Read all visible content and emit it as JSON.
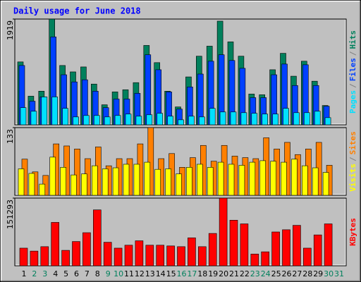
{
  "chart_data": [
    {
      "type": "bar",
      "title": "Daily usage for June 2018",
      "ylim": [
        0,
        1919
      ],
      "yticks": [
        1919
      ],
      "legend_separator": "/",
      "series": [
        {
          "name": "Hits",
          "color": "#00805c",
          "values": [
            1141,
            519,
            610,
            1919,
            1076,
            960,
            1050,
            739,
            363,
            597,
            636,
            765,
            1440,
            1128,
            610,
            324,
            869,
            1245,
            1427,
            1881,
            1505,
            1245,
            558,
            545,
            999,
            1297,
            882,
            1154,
            791,
            350,
            0
          ]
        },
        {
          "name": "Files",
          "color": "#0040ff",
          "values": [
            1076,
            428,
            506,
            1595,
            908,
            778,
            817,
            610,
            311,
            467,
            467,
            571,
            1271,
            999,
            597,
            285,
            687,
            921,
            1154,
            1271,
            1167,
            1025,
            493,
            493,
            908,
            1102,
            713,
            1089,
            713,
            337,
            0
          ]
        },
        {
          "name": "Pages",
          "color": "#00e0ff",
          "values": [
            311,
            246,
            506,
            506,
            298,
            143,
            169,
            169,
            143,
            169,
            195,
            156,
            182,
            208,
            156,
            91,
            156,
            143,
            298,
            233,
            233,
            220,
            208,
            195,
            195,
            298,
            220,
            220,
            246,
            130,
            0
          ]
        }
      ]
    },
    {
      "type": "bar",
      "ylim": [
        0,
        133
      ],
      "yticks": [
        133
      ],
      "legend_separator": "/",
      "series": [
        {
          "name": "Sites",
          "color": "#ff8000",
          "values": [
            71,
            46,
            39,
            101,
            97,
            91,
            72,
            95,
            58,
            72,
            72,
            101,
            133,
            72,
            82,
            55,
            74,
            98,
            67,
            98,
            77,
            74,
            72,
            113,
            91,
            104,
            80,
            91,
            104,
            59,
            0
          ]
        },
        {
          "name": "Visits",
          "color": "#ffff00",
          "values": [
            52,
            43,
            22,
            75,
            55,
            40,
            42,
            58,
            52,
            54,
            61,
            61,
            65,
            51,
            52,
            42,
            55,
            61,
            55,
            65,
            61,
            59,
            65,
            68,
            67,
            65,
            71,
            58,
            54,
            45,
            0
          ]
        }
      ]
    },
    {
      "type": "bar",
      "ylim": [
        0,
        151293
      ],
      "yticks": [
        151293
      ],
      "categories": [
        "1",
        "2",
        "3",
        "4",
        "5",
        "6",
        "7",
        "8",
        "9",
        "10",
        "11",
        "12",
        "13",
        "14",
        "15",
        "16",
        "17",
        "18",
        "19",
        "20",
        "21",
        "22",
        "23",
        "24",
        "25",
        "26",
        "27",
        "28",
        "29",
        "30",
        "31"
      ],
      "category_colors": [
        "#000000",
        "#00805c",
        "#00805c",
        "#000000",
        "#000000",
        "#000000",
        "#000000",
        "#000000",
        "#00805c",
        "#00805c",
        "#000000",
        "#000000",
        "#000000",
        "#000000",
        "#000000",
        "#00805c",
        "#00805c",
        "#000000",
        "#000000",
        "#000000",
        "#000000",
        "#000000",
        "#00805c",
        "#00805c",
        "#000000",
        "#000000",
        "#000000",
        "#000000",
        "#000000",
        "#00805c",
        "#00805c"
      ],
      "series": [
        {
          "name": "KBytes",
          "color": "#ff0000",
          "values": [
            39468,
            32890,
            42757,
            97026,
            34535,
            54269,
            74003,
            124982,
            52624,
            39468,
            46046,
            55913,
            46046,
            46046,
            44402,
            42757,
            62491,
            42757,
            72358,
            151293,
            101959,
            93737,
            26312,
            31246,
            75647,
            80581,
            90448,
            39468,
            69069,
            93737,
            0
          ]
        }
      ]
    }
  ]
}
